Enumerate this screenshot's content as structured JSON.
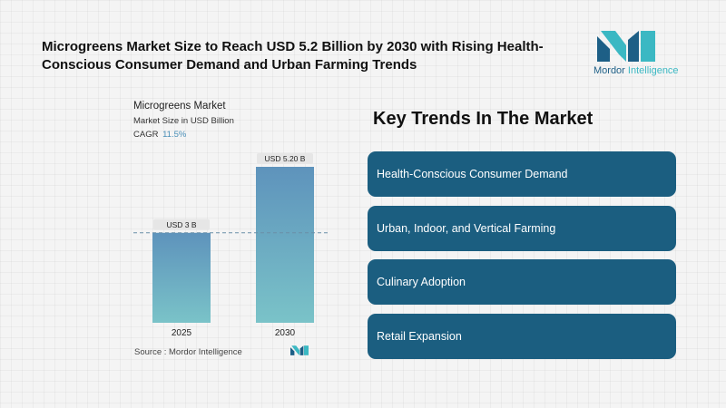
{
  "headline": "Microgreens Market Size to Reach USD 5.2 Billion by 2030 with Rising Health-Conscious Consumer Demand and Urban Farming Trends",
  "brand": {
    "name_part1": "Mordor",
    "name_part2": " Intelligence",
    "icon": "mordor-intelligence-logo"
  },
  "chart_data": {
    "type": "bar",
    "title": "Microgreens Market",
    "subtitle": "Market Size in USD Billion",
    "cagr_label": "CAGR",
    "cagr_value": "11.5%",
    "categories": [
      "2025",
      "2030"
    ],
    "values": [
      3.0,
      5.2
    ],
    "data_labels": [
      "USD 3 B",
      "USD 5.20 B"
    ],
    "ylim": [
      0,
      5.2
    ],
    "reference_line_at": 3.0,
    "colors": {
      "bar_top": "#5e93bc",
      "bar_bottom": "#7ac3c8",
      "label_bg": "#e6e6e6",
      "reference_line": "#6a8fa8"
    },
    "grid": false
  },
  "source": "Source :  Mordor Intelligence",
  "trends": {
    "title": "Key Trends In The Market",
    "items": [
      "Health-Conscious Consumer Demand",
      "Urban, Indoor, and Vertical Farming",
      "Culinary Adoption",
      "Retail Expansion"
    ],
    "color": "#1b5e80"
  }
}
